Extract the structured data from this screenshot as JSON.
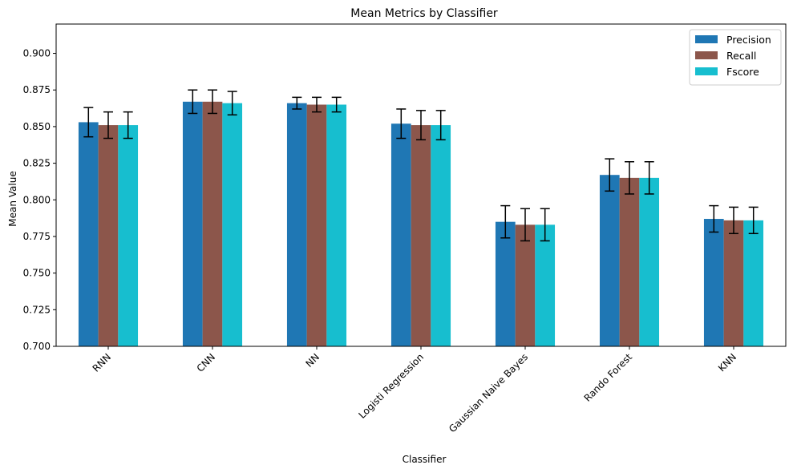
{
  "chart_data": {
    "type": "bar",
    "title": "Mean Metrics by Classifier",
    "xlabel": "Classifier",
    "ylabel": "Mean Value",
    "ylim": [
      0.7,
      0.92
    ],
    "yticks": [
      "0.700",
      "0.725",
      "0.750",
      "0.775",
      "0.800",
      "0.825",
      "0.850",
      "0.875",
      "0.900"
    ],
    "categories": [
      "RNN",
      "CNN",
      "NN",
      "Logisti Regression",
      "Gaussian Naive Bayes",
      "Rando Forest",
      "KNN"
    ],
    "legend_position": "top-right",
    "grid": false,
    "series": [
      {
        "name": "Precision",
        "color": "#1f77b4",
        "values": [
          0.853,
          0.867,
          0.866,
          0.852,
          0.785,
          0.817,
          0.787
        ],
        "errors": [
          0.01,
          0.008,
          0.004,
          0.01,
          0.011,
          0.011,
          0.009
        ]
      },
      {
        "name": "Recall",
        "color": "#8c564b",
        "values": [
          0.851,
          0.867,
          0.865,
          0.851,
          0.783,
          0.815,
          0.786
        ],
        "errors": [
          0.009,
          0.008,
          0.005,
          0.01,
          0.011,
          0.011,
          0.009
        ]
      },
      {
        "name": "Fscore",
        "color": "#17becf",
        "values": [
          0.851,
          0.866,
          0.865,
          0.851,
          0.783,
          0.815,
          0.786
        ],
        "errors": [
          0.009,
          0.008,
          0.005,
          0.01,
          0.011,
          0.011,
          0.009
        ]
      }
    ]
  }
}
